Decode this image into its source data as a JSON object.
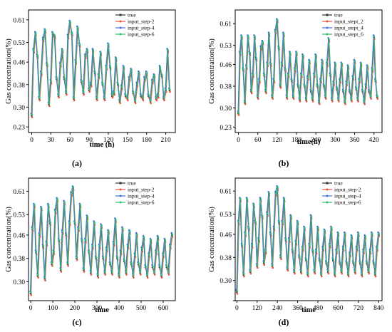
{
  "figure": {
    "background": "#ffffff"
  },
  "colors": {
    "true": "#333333",
    "step2": "#e8543f",
    "step4": "#3f6fe0",
    "step6": "#2fbf6a"
  },
  "chart_data": [
    {
      "type": "line",
      "panel_label": "(a)",
      "xlabel": "time (h)",
      "ylabel": "Gas concentration(%)",
      "xlim": [
        -5,
        225
      ],
      "ylim": [
        0.21,
        0.645
      ],
      "xticks": [
        0,
        30,
        60,
        90,
        120,
        150,
        180,
        210
      ],
      "yticks": [
        0.23,
        0.3,
        0.38,
        0.46,
        0.53,
        0.61
      ],
      "ytick_labels": [
        "0.23",
        "0.30",
        "0.38",
        "0.46",
        "0.53",
        "0.61"
      ],
      "legend_position": "top-right",
      "series": [
        {
          "name": "true",
          "color": "#333333"
        },
        {
          "name": "input_step-2",
          "color": "#e8543f"
        },
        {
          "name": "input_step-4",
          "color": "#3f6fe0"
        },
        {
          "name": "input_step-6",
          "color": "#2fbf6a"
        }
      ],
      "x": [
        0,
        3,
        6,
        9,
        12,
        15,
        18,
        21,
        24,
        27,
        30,
        33,
        36,
        39,
        42,
        45,
        48,
        51,
        54,
        57,
        60,
        63,
        66,
        69,
        72,
        75,
        78,
        81,
        84,
        87,
        90,
        93,
        96,
        99,
        102,
        105,
        108,
        111,
        114,
        117,
        120,
        123,
        126,
        129,
        132,
        135,
        138,
        141,
        144,
        147,
        150,
        153,
        156,
        159,
        162,
        165,
        168,
        171,
        174,
        177,
        180,
        183,
        186,
        189,
        192,
        195,
        198,
        201,
        204,
        207,
        210,
        213,
        216
      ],
      "y": [
        0.27,
        0.5,
        0.56,
        0.48,
        0.33,
        0.42,
        0.54,
        0.57,
        0.45,
        0.31,
        0.39,
        0.56,
        0.55,
        0.4,
        0.34,
        0.45,
        0.5,
        0.4,
        0.35,
        0.55,
        0.6,
        0.56,
        0.33,
        0.46,
        0.58,
        0.52,
        0.39,
        0.35,
        0.48,
        0.5,
        0.36,
        0.38,
        0.5,
        0.42,
        0.33,
        0.41,
        0.49,
        0.38,
        0.33,
        0.44,
        0.52,
        0.44,
        0.34,
        0.35,
        0.47,
        0.38,
        0.32,
        0.37,
        0.44,
        0.34,
        0.33,
        0.4,
        0.43,
        0.35,
        0.32,
        0.38,
        0.42,
        0.34,
        0.33,
        0.4,
        0.42,
        0.34,
        0.32,
        0.39,
        0.41,
        0.33,
        0.34,
        0.44,
        0.41,
        0.33,
        0.36,
        0.5,
        0.36
      ]
    },
    {
      "type": "line",
      "panel_label": "(b)",
      "xlabel": "time(h)",
      "ylabel": "Gas concentration(%)",
      "xlim": [
        -10,
        445
      ],
      "ylim": [
        0.21,
        0.66
      ],
      "xticks": [
        0,
        60,
        120,
        180,
        240,
        300,
        360,
        420
      ],
      "yticks": [
        0.23,
        0.3,
        0.38,
        0.46,
        0.53,
        0.61
      ],
      "ytick_labels": [
        "0.23",
        "0.30",
        "0.38",
        "0.46",
        "0.53",
        "0.61"
      ],
      "legend_position": "top-right",
      "series": [
        {
          "name": "true",
          "color": "#333333"
        },
        {
          "name": "input_stept_2",
          "color": "#e8543f"
        },
        {
          "name": "input_stept_4",
          "color": "#3f6fe0"
        },
        {
          "name": "input_stept_6",
          "color": "#2fbf6a"
        }
      ],
      "x": [
        0,
        5,
        10,
        15,
        20,
        25,
        30,
        35,
        40,
        45,
        50,
        55,
        60,
        65,
        70,
        75,
        80,
        85,
        90,
        95,
        100,
        105,
        110,
        115,
        120,
        125,
        130,
        135,
        140,
        145,
        150,
        155,
        160,
        165,
        170,
        175,
        180,
        185,
        190,
        195,
        200,
        205,
        210,
        215,
        220,
        225,
        230,
        235,
        240,
        245,
        250,
        255,
        260,
        265,
        270,
        275,
        280,
        285,
        290,
        295,
        300,
        305,
        310,
        315,
        320,
        325,
        330,
        335,
        340,
        345,
        350,
        355,
        360,
        365,
        370,
        375,
        380,
        385,
        390,
        395,
        400,
        405,
        410,
        415,
        420,
        425,
        430
      ],
      "y": [
        0.28,
        0.5,
        0.56,
        0.44,
        0.32,
        0.45,
        0.56,
        0.5,
        0.36,
        0.42,
        0.56,
        0.48,
        0.34,
        0.4,
        0.52,
        0.54,
        0.42,
        0.36,
        0.46,
        0.57,
        0.46,
        0.34,
        0.4,
        0.58,
        0.62,
        0.52,
        0.38,
        0.46,
        0.57,
        0.44,
        0.34,
        0.42,
        0.5,
        0.4,
        0.34,
        0.44,
        0.5,
        0.38,
        0.33,
        0.42,
        0.49,
        0.38,
        0.33,
        0.41,
        0.47,
        0.36,
        0.33,
        0.42,
        0.49,
        0.38,
        0.32,
        0.4,
        0.47,
        0.38,
        0.34,
        0.46,
        0.55,
        0.42,
        0.33,
        0.39,
        0.46,
        0.37,
        0.33,
        0.4,
        0.46,
        0.36,
        0.32,
        0.39,
        0.45,
        0.36,
        0.33,
        0.41,
        0.47,
        0.37,
        0.33,
        0.4,
        0.46,
        0.36,
        0.32,
        0.38,
        0.45,
        0.36,
        0.34,
        0.44,
        0.56,
        0.4,
        0.34
      ]
    },
    {
      "type": "line",
      "panel_label": "(c)",
      "xlabel": "time",
      "ylabel": "Gas concentration(%)",
      "xlim": [
        -10,
        655
      ],
      "ylim": [
        0.235,
        0.655
      ],
      "xticks": [
        0,
        100,
        200,
        300,
        400,
        500,
        600
      ],
      "yticks": [
        0.23,
        0.3,
        0.38,
        0.46,
        0.53,
        0.61
      ],
      "ytick_labels": [
        "",
        "0.30",
        "0.38",
        "0.46",
        "0.53",
        "0.61"
      ],
      "legend_position": "top-right",
      "series": [
        {
          "name": "true",
          "color": "#333333"
        },
        {
          "name": "input_step-2",
          "color": "#e8543f"
        },
        {
          "name": "input_step-4",
          "color": "#3f6fe0"
        },
        {
          "name": "input_step-6",
          "color": "#2fbf6a"
        }
      ],
      "x": [
        0,
        8,
        16,
        24,
        32,
        40,
        48,
        56,
        64,
        72,
        80,
        88,
        96,
        104,
        112,
        120,
        128,
        136,
        144,
        152,
        160,
        168,
        176,
        184,
        192,
        200,
        208,
        216,
        224,
        232,
        240,
        248,
        256,
        264,
        272,
        280,
        288,
        296,
        304,
        312,
        320,
        328,
        336,
        344,
        352,
        360,
        368,
        376,
        384,
        392,
        400,
        408,
        416,
        424,
        432,
        440,
        448,
        456,
        464,
        472,
        480,
        488,
        496,
        504,
        512,
        520,
        528,
        536,
        544,
        552,
        560,
        568,
        576,
        584,
        592,
        600,
        608,
        616,
        624,
        632,
        640
      ],
      "y": [
        0.26,
        0.48,
        0.56,
        0.4,
        0.32,
        0.46,
        0.55,
        0.42,
        0.31,
        0.43,
        0.56,
        0.5,
        0.36,
        0.4,
        0.54,
        0.58,
        0.44,
        0.34,
        0.47,
        0.57,
        0.46,
        0.36,
        0.5,
        0.6,
        0.62,
        0.5,
        0.38,
        0.48,
        0.56,
        0.44,
        0.34,
        0.44,
        0.52,
        0.4,
        0.33,
        0.42,
        0.5,
        0.38,
        0.32,
        0.42,
        0.49,
        0.38,
        0.33,
        0.41,
        0.47,
        0.36,
        0.33,
        0.43,
        0.51,
        0.38,
        0.32,
        0.4,
        0.48,
        0.37,
        0.33,
        0.42,
        0.47,
        0.36,
        0.32,
        0.39,
        0.46,
        0.36,
        0.33,
        0.41,
        0.45,
        0.35,
        0.32,
        0.39,
        0.44,
        0.35,
        0.33,
        0.4,
        0.45,
        0.35,
        0.32,
        0.39,
        0.44,
        0.35,
        0.33,
        0.42,
        0.46
      ]
    },
    {
      "type": "line",
      "panel_label": "(d)",
      "xlabel": "time",
      "ylabel": "Gas concentration(%)",
      "xlim": [
        -10,
        860
      ],
      "ylim": [
        0.23,
        0.655
      ],
      "xticks": [
        0,
        120,
        240,
        360,
        480,
        600,
        720,
        840
      ],
      "yticks": [
        0.23,
        0.3,
        0.38,
        0.46,
        0.53,
        0.61
      ],
      "ytick_labels": [
        "",
        "0.30",
        "0.38",
        "0.46",
        "0.53",
        "0.61"
      ],
      "legend_position": "top-right",
      "series": [
        {
          "name": "true",
          "color": "#333333"
        },
        {
          "name": "input_step-2",
          "color": "#e8543f"
        },
        {
          "name": "input_step-4",
          "color": "#3f6fe0"
        },
        {
          "name": "input_step-6",
          "color": "#2fbf6a"
        }
      ],
      "x": [
        0,
        10,
        20,
        30,
        40,
        50,
        60,
        70,
        80,
        90,
        100,
        110,
        120,
        130,
        140,
        150,
        160,
        170,
        180,
        190,
        200,
        210,
        220,
        230,
        240,
        250,
        260,
        270,
        280,
        290,
        300,
        310,
        320,
        330,
        340,
        350,
        360,
        370,
        380,
        390,
        400,
        410,
        420,
        430,
        440,
        450,
        460,
        470,
        480,
        490,
        500,
        510,
        520,
        530,
        540,
        550,
        560,
        570,
        580,
        590,
        600,
        610,
        620,
        630,
        640,
        650,
        660,
        670,
        680,
        690,
        700,
        710,
        720,
        730,
        740,
        750,
        760,
        770,
        780,
        790,
        800,
        810,
        820,
        830,
        840
      ],
      "y": [
        0.26,
        0.5,
        0.58,
        0.42,
        0.32,
        0.46,
        0.58,
        0.48,
        0.33,
        0.42,
        0.56,
        0.5,
        0.35,
        0.44,
        0.58,
        0.52,
        0.36,
        0.4,
        0.53,
        0.6,
        0.46,
        0.35,
        0.48,
        0.6,
        0.62,
        0.5,
        0.38,
        0.5,
        0.58,
        0.44,
        0.34,
        0.44,
        0.52,
        0.4,
        0.33,
        0.43,
        0.5,
        0.38,
        0.33,
        0.41,
        0.48,
        0.37,
        0.32,
        0.42,
        0.52,
        0.4,
        0.33,
        0.4,
        0.48,
        0.37,
        0.32,
        0.41,
        0.47,
        0.36,
        0.33,
        0.42,
        0.48,
        0.37,
        0.32,
        0.4,
        0.46,
        0.36,
        0.33,
        0.41,
        0.46,
        0.36,
        0.32,
        0.39,
        0.45,
        0.36,
        0.33,
        0.41,
        0.46,
        0.36,
        0.32,
        0.4,
        0.45,
        0.36,
        0.33,
        0.4,
        0.46,
        0.36,
        0.32,
        0.41,
        0.46
      ]
    }
  ]
}
